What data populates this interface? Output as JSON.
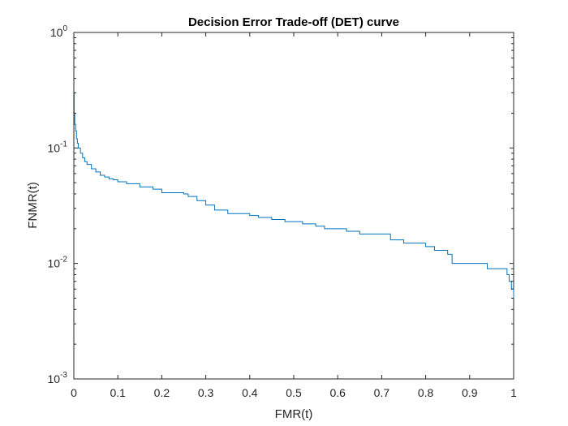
{
  "chart_data": {
    "type": "line",
    "title": "Decision Error Trade-off (DET) curve",
    "xlabel": "FMR(t)",
    "ylabel": "FNMR(t)",
    "xlim": [
      0,
      1
    ],
    "ylim": [
      0.001,
      1
    ],
    "yscale": "log",
    "grid": false,
    "x_ticks": [
      "0",
      "0.1",
      "0.2",
      "0.3",
      "0.4",
      "0.5",
      "0.6",
      "0.7",
      "0.8",
      "0.9",
      "1"
    ],
    "y_ticks": [
      {
        "base": "10",
        "exp": "0"
      },
      {
        "base": "10",
        "exp": "-1"
      },
      {
        "base": "10",
        "exp": "-2"
      },
      {
        "base": "10",
        "exp": "-3"
      }
    ],
    "colors": {
      "line": "#0072BD",
      "axes": "#262626"
    },
    "series": [
      {
        "x": [
          0,
          0.001,
          0.002,
          0.004,
          0.006,
          0.008,
          0.01,
          0.015,
          0.02,
          0.025,
          0.03,
          0.04,
          0.05,
          0.06,
          0.07,
          0.08,
          0.09,
          0.1,
          0.12,
          0.15,
          0.18,
          0.2,
          0.22,
          0.24,
          0.25,
          0.26,
          0.28,
          0.3,
          0.32,
          0.35,
          0.37,
          0.4,
          0.42,
          0.45,
          0.48,
          0.5,
          0.52,
          0.55,
          0.57,
          0.6,
          0.62,
          0.65,
          0.68,
          0.7,
          0.72,
          0.75,
          0.77,
          0.8,
          0.82,
          0.85,
          0.86,
          0.9,
          0.93,
          0.94,
          0.96,
          0.975,
          0.98,
          0.985,
          0.99,
          0.995,
          1.0
        ],
        "y": [
          0.3,
          0.2,
          0.16,
          0.14,
          0.12,
          0.11,
          0.1,
          0.09,
          0.082,
          0.076,
          0.072,
          0.066,
          0.062,
          0.058,
          0.056,
          0.054,
          0.053,
          0.051,
          0.049,
          0.046,
          0.044,
          0.041,
          0.041,
          0.041,
          0.04,
          0.038,
          0.035,
          0.032,
          0.029,
          0.027,
          0.027,
          0.026,
          0.025,
          0.024,
          0.023,
          0.023,
          0.022,
          0.021,
          0.02,
          0.02,
          0.019,
          0.018,
          0.018,
          0.018,
          0.016,
          0.015,
          0.015,
          0.014,
          0.013,
          0.012,
          0.01,
          0.01,
          0.01,
          0.009,
          0.009,
          0.009,
          0.009,
          0.008,
          0.007,
          0.006,
          0.005
        ]
      }
    ]
  }
}
